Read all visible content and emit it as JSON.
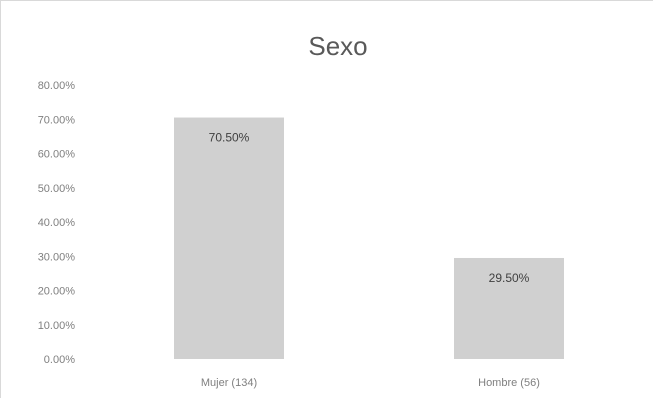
{
  "chart_data": {
    "type": "bar",
    "title": "Sexo",
    "categories": [
      "Mujer (134)",
      "Hombre (56)"
    ],
    "values": [
      0.705,
      0.295
    ],
    "data_labels": [
      "70.50%",
      "29.50%"
    ],
    "ylim": [
      0,
      0.8
    ],
    "y_ticks": [
      0,
      0.1,
      0.2,
      0.3,
      0.4,
      0.5,
      0.6,
      0.7,
      0.8
    ],
    "y_tick_labels": [
      "0.00%",
      "10.00%",
      "20.00%",
      "30.00%",
      "40.00%",
      "50.00%",
      "60.00%",
      "70.00%",
      "80.00%"
    ],
    "xlabel": "",
    "ylabel": "",
    "grid": false,
    "legend": "none",
    "bar_color": "#d0d0d0"
  }
}
